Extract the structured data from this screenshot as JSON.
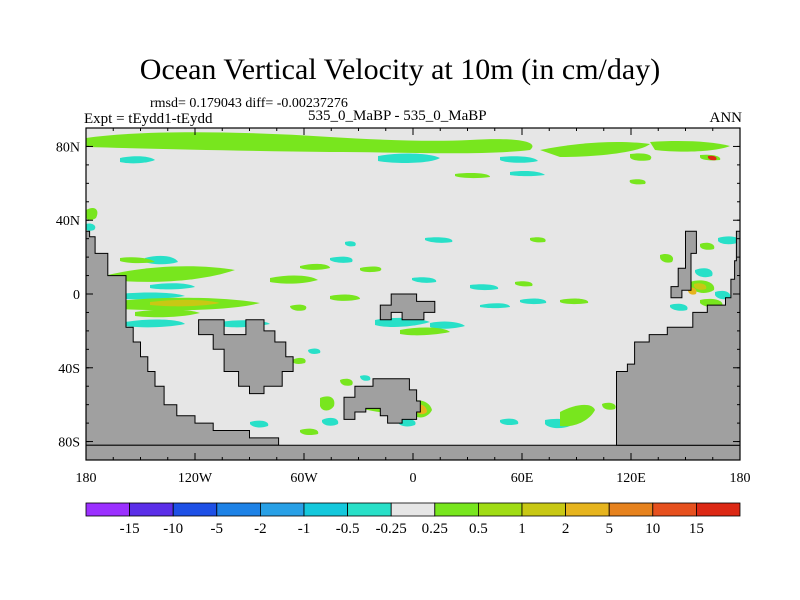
{
  "chart_data": {
    "type": "heatmap",
    "title": "Ocean Vertical Velocity at 10m (in cm/day)",
    "stats_text": "rmsd= 0.179043 diff= -0.00237276",
    "experiment_text": "Expt = tEydd1-tEydd",
    "case_text": "535_0_MaBP - 535_0_MaBP",
    "season": "ANN",
    "xlim": [
      -180,
      180
    ],
    "ylim": [
      -90,
      90
    ],
    "x_ticks": [
      {
        "value": -180,
        "label": "180"
      },
      {
        "value": -120,
        "label": "120W"
      },
      {
        "value": -60,
        "label": "60W"
      },
      {
        "value": 0,
        "label": "0"
      },
      {
        "value": 60,
        "label": "60E"
      },
      {
        "value": 120,
        "label": "120E"
      },
      {
        "value": 180,
        "label": "180"
      }
    ],
    "y_ticks": [
      {
        "value": 80,
        "label": "80N"
      },
      {
        "value": 40,
        "label": "40N"
      },
      {
        "value": 0,
        "label": "0"
      },
      {
        "value": -40,
        "label": "40S"
      },
      {
        "value": -80,
        "label": "80S"
      }
    ],
    "colorbar": {
      "boundaries": [
        "-15",
        "-10",
        "-5",
        "-2",
        "-1",
        "-0.5",
        "-0.25",
        "0.25",
        "0.5",
        "1",
        "2",
        "5",
        "10",
        "15"
      ],
      "colors": [
        "#9b30ff",
        "#5b2ee8",
        "#1e50e6",
        "#1e82e6",
        "#28a0e6",
        "#14c8dc",
        "#28e0c8",
        "#e6e6e6",
        "#78e61e",
        "#a0dc14",
        "#c8c814",
        "#e6b41e",
        "#e6821e",
        "#e6501e",
        "#dc2814"
      ]
    },
    "land_polygons": [
      [
        [
          -180,
          34
        ],
        [
          -178,
          34
        ],
        [
          -178,
          31
        ],
        [
          -175,
          31
        ],
        [
          -175,
          22
        ],
        [
          -168,
          22
        ],
        [
          -168,
          10
        ],
        [
          -158,
          10
        ],
        [
          -158,
          -18
        ],
        [
          -154,
          -18
        ],
        [
          -154,
          -26
        ],
        [
          -150,
          -26
        ],
        [
          -150,
          -34
        ],
        [
          -146,
          -34
        ],
        [
          -146,
          -42
        ],
        [
          -142,
          -42
        ],
        [
          -142,
          -50
        ],
        [
          -137,
          -50
        ],
        [
          -137,
          -60
        ],
        [
          -130,
          -60
        ],
        [
          -130,
          -66
        ],
        [
          -120,
          -66
        ],
        [
          -120,
          -70
        ],
        [
          -110,
          -70
        ],
        [
          -110,
          -74
        ],
        [
          -90,
          -74
        ],
        [
          -90,
          -78
        ],
        [
          -74,
          -78
        ],
        [
          -74,
          -82
        ],
        [
          -180,
          -82
        ]
      ],
      [
        [
          -180,
          -82
        ],
        [
          180,
          -82
        ],
        [
          180,
          -90
        ],
        [
          -180,
          -90
        ]
      ],
      [
        [
          -118,
          -14
        ],
        [
          -104,
          -14
        ],
        [
          -104,
          -22
        ],
        [
          -92,
          -22
        ],
        [
          -92,
          -14
        ],
        [
          -82,
          -14
        ],
        [
          -82,
          -20
        ],
        [
          -76,
          -20
        ],
        [
          -76,
          -26
        ],
        [
          -70,
          -26
        ],
        [
          -70,
          -34
        ],
        [
          -66,
          -34
        ],
        [
          -66,
          -42
        ],
        [
          -72,
          -42
        ],
        [
          -72,
          -50
        ],
        [
          -82,
          -50
        ],
        [
          -82,
          -54
        ],
        [
          -90,
          -54
        ],
        [
          -90,
          -50
        ],
        [
          -96,
          -50
        ],
        [
          -96,
          -42
        ],
        [
          -104,
          -42
        ],
        [
          -104,
          -30
        ],
        [
          -110,
          -30
        ],
        [
          -110,
          -22
        ],
        [
          -118,
          -22
        ]
      ],
      [
        [
          -18,
          -6
        ],
        [
          -12,
          -6
        ],
        [
          -12,
          0
        ],
        [
          2,
          0
        ],
        [
          2,
          -4
        ],
        [
          12,
          -4
        ],
        [
          12,
          -10
        ],
        [
          6,
          -10
        ],
        [
          6,
          -14
        ],
        [
          -6,
          -14
        ],
        [
          -6,
          -10
        ],
        [
          -12,
          -10
        ],
        [
          -12,
          -14
        ],
        [
          -18,
          -14
        ]
      ],
      [
        [
          -38,
          -56
        ],
        [
          -32,
          -56
        ],
        [
          -32,
          -50
        ],
        [
          -22,
          -50
        ],
        [
          -22,
          -46
        ],
        [
          -2,
          -46
        ],
        [
          -2,
          -52
        ],
        [
          2,
          -52
        ],
        [
          2,
          -58
        ],
        [
          4,
          -58
        ],
        [
          4,
          -64
        ],
        [
          2,
          -64
        ],
        [
          2,
          -68
        ],
        [
          -6,
          -68
        ],
        [
          -6,
          -70
        ],
        [
          -14,
          -70
        ],
        [
          -14,
          -66
        ],
        [
          -18,
          -66
        ],
        [
          -18,
          -62
        ],
        [
          -26,
          -62
        ],
        [
          -26,
          -64
        ],
        [
          -32,
          -64
        ],
        [
          -32,
          -68
        ],
        [
          -38,
          -68
        ]
      ],
      [
        [
          112,
          -82
        ],
        [
          112,
          -42
        ],
        [
          118,
          -42
        ],
        [
          118,
          -38
        ],
        [
          122,
          -38
        ],
        [
          122,
          -26
        ],
        [
          130,
          -26
        ],
        [
          130,
          -22
        ],
        [
          140,
          -22
        ],
        [
          140,
          -18
        ],
        [
          154,
          -18
        ],
        [
          154,
          -10
        ],
        [
          162,
          -10
        ],
        [
          162,
          -6
        ],
        [
          172,
          -6
        ],
        [
          172,
          -2
        ],
        [
          175,
          -2
        ],
        [
          175,
          8
        ],
        [
          177,
          8
        ],
        [
          177,
          18
        ],
        [
          178,
          18
        ],
        [
          178,
          34
        ],
        [
          180,
          34
        ],
        [
          180,
          -82
        ]
      ],
      [
        [
          142,
          -2
        ],
        [
          148,
          -2
        ],
        [
          148,
          2
        ],
        [
          153,
          2
        ],
        [
          153,
          22
        ],
        [
          156,
          22
        ],
        [
          156,
          34
        ],
        [
          150,
          34
        ],
        [
          150,
          14
        ],
        [
          146,
          14
        ],
        [
          146,
          4
        ],
        [
          142,
          4
        ]
      ]
    ]
  }
}
